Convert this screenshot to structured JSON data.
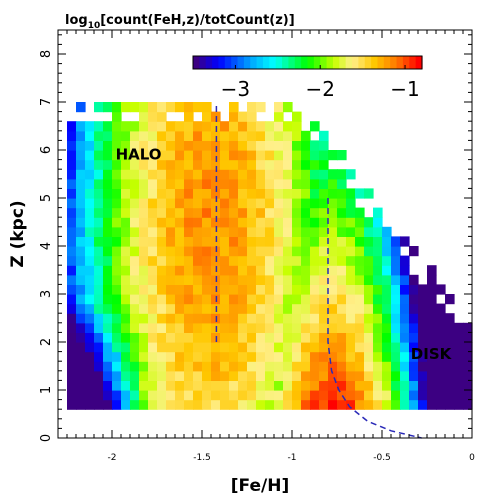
{
  "chart_data": {
    "type": "heatmap",
    "title_main": "log",
    "title_sub": "10",
    "title_rest": "[count(FeH,z)/totCount(z)]",
    "xlabel": "[Fe/H]",
    "ylabel": "Z (kpc)",
    "xlim": [
      -2.3,
      0.0
    ],
    "ylim": [
      0,
      8.5
    ],
    "xticks": [
      -2,
      -1.5,
      -1,
      -0.5,
      0
    ],
    "xtick_labels": [
      "-2",
      "-1.5",
      "-1",
      "-0.5",
      "0"
    ],
    "yticks": [
      0,
      1,
      2,
      3,
      4,
      5,
      6,
      7,
      8
    ],
    "ytick_labels": [
      "0",
      "1",
      "2",
      "3",
      "4",
      "5",
      "6",
      "7",
      "8"
    ],
    "bin_width_feh": 0.05,
    "bin_height_z": 0.2,
    "colorbar": {
      "range": [
        -3.5,
        -0.8
      ],
      "ticks": [
        -3,
        -2,
        -1
      ],
      "tick_labels": [
        "−3",
        "−2",
        "−1"
      ]
    },
    "annotations": [
      {
        "text": "HALO",
        "feh": -1.98,
        "z": 5.8
      },
      {
        "text": "DISK",
        "feh": -0.34,
        "z": 1.65
      }
    ],
    "halo_line": {
      "feh": -1.42,
      "z_range": [
        2.0,
        7.0
      ]
    },
    "disk_curve": [
      {
        "feh": -0.8,
        "z": 5.0
      },
      {
        "feh": -0.8,
        "z": 2.0
      },
      {
        "feh": -0.78,
        "z": 1.4
      },
      {
        "feh": -0.74,
        "z": 1.0
      },
      {
        "feh": -0.68,
        "z": 0.65
      },
      {
        "feh": -0.58,
        "z": 0.35
      },
      {
        "feh": -0.45,
        "z": 0.15
      },
      {
        "feh": -0.28,
        "z": 0.0
      }
    ],
    "heatmap_summary": {
      "feh_range": [
        -2.25,
        -0.05
      ],
      "z_range": [
        0.6,
        7.0
      ],
      "halo_peak": {
        "feh": -1.45,
        "z_center": 4.5,
        "value": -1.15
      },
      "disk_peak": {
        "feh": -0.78,
        "z_center": 0.6,
        "value": -0.85
      },
      "low_value_corner": {
        "feh": -2.2,
        "z": 0.6,
        "value": -3.6
      }
    }
  }
}
